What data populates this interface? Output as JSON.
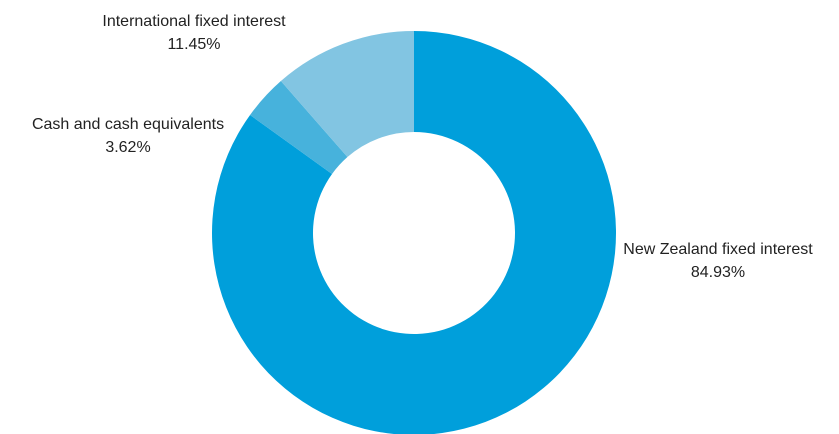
{
  "chart_data": {
    "type": "pie",
    "variant": "donut",
    "title": "",
    "start_angle_deg": 0,
    "direction": "clockwise",
    "slices": [
      {
        "label": "New Zealand fixed interest",
        "value": 84.93,
        "value_label": "84.93%",
        "color": "#009fdb"
      },
      {
        "label": "Cash and cash equivalents",
        "value": 3.62,
        "value_label": "3.62%",
        "color": "#47b2dc"
      },
      {
        "label": "International fixed interest",
        "value": 11.45,
        "value_label": "11.45%",
        "color": "#82c5e2"
      }
    ],
    "legend": "none",
    "labels": "outside"
  }
}
